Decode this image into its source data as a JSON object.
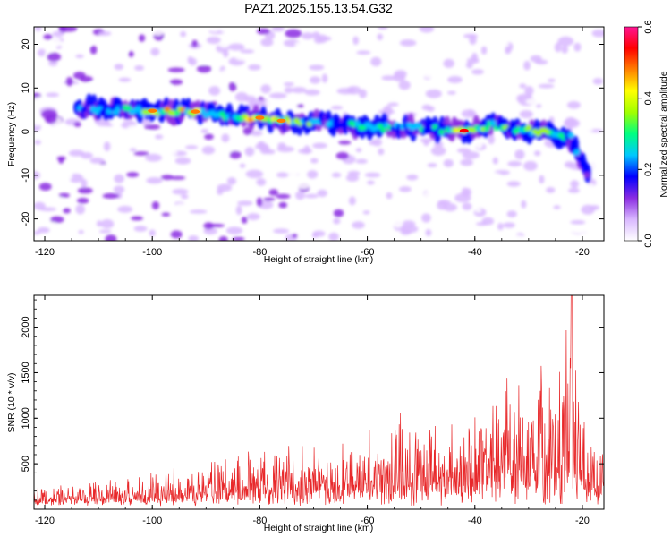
{
  "chart_data": [
    {
      "type": "heatmap",
      "title": "PAZ1.2025.155.13.54.G32",
      "xlabel": "Height of straight line (km)",
      "ylabel": "Frequency (Hz)",
      "xlim": [
        -122,
        -16
      ],
      "ylim": [
        -25,
        24
      ],
      "x_ticks": [
        -120,
        -100,
        -80,
        -60,
        -40,
        -20
      ],
      "y_ticks": [
        20,
        10,
        0,
        -10,
        -20
      ],
      "colorbar": {
        "label": "Normalized spectral amplitude",
        "range": [
          0,
          0.6
        ],
        "ticks": [
          0.0,
          0.2,
          0.4,
          0.6
        ],
        "colors": [
          "#ffffff",
          "#d9b8ff",
          "#8a2be2",
          "#0000ff",
          "#00c8ff",
          "#00ff80",
          "#a0ff00",
          "#ffff00",
          "#ff8000",
          "#ff0000",
          "#ff1493"
        ]
      },
      "ridge": [
        {
          "x": -114,
          "y": 5.5,
          "v": 0.22
        },
        {
          "x": -108,
          "y": 5.0,
          "v": 0.25
        },
        {
          "x": -100,
          "y": 4.8,
          "v": 0.45
        },
        {
          "x": -92,
          "y": 4.6,
          "v": 0.48
        },
        {
          "x": -85,
          "y": 3.5,
          "v": 0.32
        },
        {
          "x": -80,
          "y": 3.2,
          "v": 0.5
        },
        {
          "x": -76,
          "y": 2.5,
          "v": 0.48
        },
        {
          "x": -68,
          "y": 2.0,
          "v": 0.25
        },
        {
          "x": -60,
          "y": 1.0,
          "v": 0.3
        },
        {
          "x": -52,
          "y": 1.0,
          "v": 0.28
        },
        {
          "x": -46,
          "y": 0.5,
          "v": 0.3
        },
        {
          "x": -42,
          "y": 0.2,
          "v": 0.55
        },
        {
          "x": -37,
          "y": 1.5,
          "v": 0.32
        },
        {
          "x": -32,
          "y": 0.5,
          "v": 0.35
        },
        {
          "x": -28,
          "y": 0.0,
          "v": 0.4
        },
        {
          "x": -22,
          "y": -1.5,
          "v": 0.3
        },
        {
          "x": -19,
          "y": -10.5,
          "v": 0.22
        }
      ]
    },
    {
      "type": "line",
      "title": "",
      "xlabel": "Height of straight line (km)",
      "ylabel": "SNR (10 * v/v)",
      "xlim": [
        -122,
        -16
      ],
      "ylim": [
        0,
        2350
      ],
      "x_ticks": [
        -120,
        -100,
        -80,
        -60,
        -40,
        -20
      ],
      "y_ticks": [
        500,
        1000,
        1500,
        2000
      ],
      "color": "#e8282a",
      "envelope": [
        {
          "x": -122,
          "y": 230
        },
        {
          "x": -110,
          "y": 270
        },
        {
          "x": -100,
          "y": 350
        },
        {
          "x": -90,
          "y": 480
        },
        {
          "x": -80,
          "y": 620
        },
        {
          "x": -70,
          "y": 600
        },
        {
          "x": -60,
          "y": 720
        },
        {
          "x": -52,
          "y": 950
        },
        {
          "x": -45,
          "y": 850
        },
        {
          "x": -40,
          "y": 1000
        },
        {
          "x": -34,
          "y": 1250
        },
        {
          "x": -30,
          "y": 1450
        },
        {
          "x": -25,
          "y": 1200
        },
        {
          "x": -22,
          "y": 2350
        },
        {
          "x": -20,
          "y": 1100
        },
        {
          "x": -16,
          "y": 650
        }
      ]
    }
  ]
}
